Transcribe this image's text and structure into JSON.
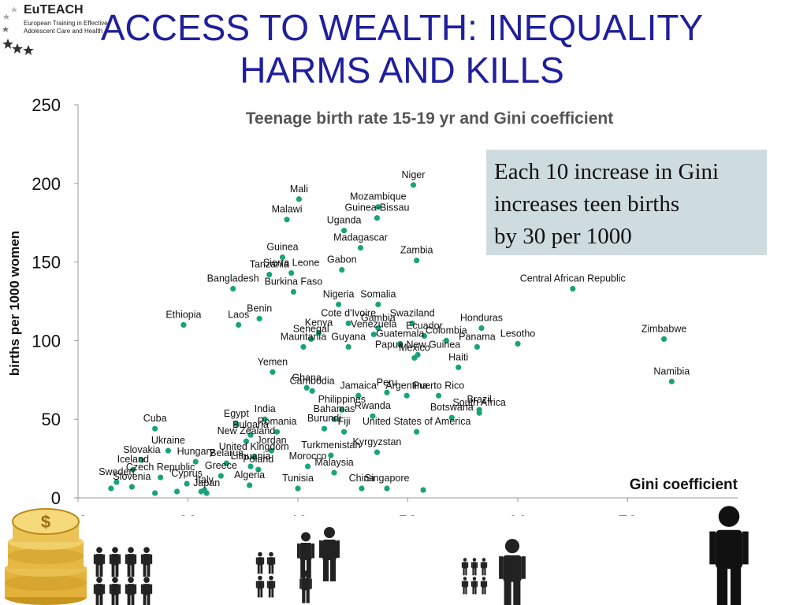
{
  "logo": {
    "name": "EuTEACH",
    "subtitle": "European Training in Effective Adolescent Care and Health"
  },
  "slide": {
    "title": "ACCESS TO WEALTH: INEQUALITY HARMS AND KILLS"
  },
  "callout": {
    "lines": [
      "Each 10 increase in Gini",
      "increases teen births",
      "by 30 per 1000"
    ]
  },
  "chart_data": {
    "type": "scatter",
    "title": "Teenage birth rate 15-19 yr and Gini coefficient",
    "xlabel": "Gini coefficient",
    "ylabel": "births per 1000 women",
    "xlim": [
      20,
      80
    ],
    "ylim": [
      0,
      250
    ],
    "xticks": [
      20,
      30,
      40,
      50,
      60,
      70
    ],
    "yticks": [
      0,
      50,
      100,
      150,
      200,
      250
    ],
    "grid": false,
    "point_color": "#1aa37a",
    "points": [
      {
        "label": "Niger",
        "x": 50.5,
        "y": 199
      },
      {
        "label": "Mali",
        "x": 40.1,
        "y": 190
      },
      {
        "label": "Mozambique",
        "x": 47.3,
        "y": 185
      },
      {
        "label": "Malawi",
        "x": 39,
        "y": 177
      },
      {
        "label": "Guinea-Bissau",
        "x": 47.2,
        "y": 178
      },
      {
        "label": "Uganda",
        "x": 44.2,
        "y": 170
      },
      {
        "label": "Guinea",
        "x": 38.6,
        "y": 153
      },
      {
        "label": "Madagascar",
        "x": 45.7,
        "y": 159
      },
      {
        "label": "Zambia",
        "x": 50.8,
        "y": 151
      },
      {
        "label": "Sierra Leone",
        "x": 39.4,
        "y": 143
      },
      {
        "label": "Gabon",
        "x": 44,
        "y": 145
      },
      {
        "label": "Tanzania",
        "x": 37.4,
        "y": 142
      },
      {
        "label": "Bangladesh",
        "x": 34.1,
        "y": 133
      },
      {
        "label": "Burkina Faso",
        "x": 39.6,
        "y": 131
      },
      {
        "label": "Nigeria",
        "x": 43.7,
        "y": 123
      },
      {
        "label": "Somalia",
        "x": 47.3,
        "y": 123
      },
      {
        "label": "Central African Republic",
        "x": 65,
        "y": 133
      },
      {
        "label": "Benin",
        "x": 36.5,
        "y": 114
      },
      {
        "label": "Ethiopia",
        "x": 29.6,
        "y": 110
      },
      {
        "label": "Laos",
        "x": 34.6,
        "y": 110
      },
      {
        "label": "Cote d'Ivoire",
        "x": 44.6,
        "y": 111
      },
      {
        "label": "Swaziland",
        "x": 50.4,
        "y": 111
      },
      {
        "label": "Honduras",
        "x": 56.7,
        "y": 108
      },
      {
        "label": "Zimbabwe",
        "x": 73.3,
        "y": 101
      },
      {
        "label": "Kenya",
        "x": 41.9,
        "y": 105
      },
      {
        "label": "Gambia",
        "x": 47.3,
        "y": 108
      },
      {
        "label": "Venezuela",
        "x": 46.9,
        "y": 104
      },
      {
        "label": "Ecuador",
        "x": 51.5,
        "y": 103
      },
      {
        "label": "Lesotho",
        "x": 60,
        "y": 98
      },
      {
        "label": "Senegal",
        "x": 41.2,
        "y": 101
      },
      {
        "label": "Colombia",
        "x": 53.5,
        "y": 100
      },
      {
        "label": "Guyana",
        "x": 44.6,
        "y": 96
      },
      {
        "label": "Guatemala",
        "x": 49.3,
        "y": 98
      },
      {
        "label": "Mauritania",
        "x": 40.5,
        "y": 96
      },
      {
        "label": "Mexico",
        "x": 50.6,
        "y": 89
      },
      {
        "label": "Panama",
        "x": 56.3,
        "y": 96
      },
      {
        "label": "Yemen",
        "x": 37.7,
        "y": 80
      },
      {
        "label": "Papua New Guinea",
        "x": 50.9,
        "y": 91
      },
      {
        "label": "Haiti",
        "x": 54.6,
        "y": 83
      },
      {
        "label": "Namibia",
        "x": 74,
        "y": 74
      },
      {
        "label": "Ghana",
        "x": 40.8,
        "y": 70
      },
      {
        "label": "Jamaica",
        "x": 45.5,
        "y": 65
      },
      {
        "label": "Argentina",
        "x": 49.9,
        "y": 65
      },
      {
        "label": "Peru",
        "x": 48.1,
        "y": 67
      },
      {
        "label": "Puerto Rico",
        "x": 52.8,
        "y": 65
      },
      {
        "label": "Brazil",
        "x": 56.5,
        "y": 56
      },
      {
        "label": "Botswana",
        "x": 54,
        "y": 51
      },
      {
        "label": "South Africa",
        "x": 56.5,
        "y": 54
      },
      {
        "label": "Cambodia",
        "x": 41.3,
        "y": 68
      },
      {
        "label": "Philippines",
        "x": 44,
        "y": 56
      },
      {
        "label": "Rwanda",
        "x": 46.8,
        "y": 52
      },
      {
        "label": "Egypt",
        "x": 34.4,
        "y": 47
      },
      {
        "label": "India",
        "x": 37,
        "y": 50
      },
      {
        "label": "Bahamas",
        "x": 43.3,
        "y": 50
      },
      {
        "label": "Cuba",
        "x": 27,
        "y": 44
      },
      {
        "label": "Bulgaria",
        "x": 35.7,
        "y": 40
      },
      {
        "label": "Romania",
        "x": 38.1,
        "y": 42
      },
      {
        "label": "United States of America",
        "x": 50.8,
        "y": 42
      },
      {
        "label": "Burundi",
        "x": 42.4,
        "y": 44
      },
      {
        "label": "Fiji",
        "x": 44.2,
        "y": 42
      },
      {
        "label": "New Zealand",
        "x": 35.3,
        "y": 36
      },
      {
        "label": "Ukraine",
        "x": 28.2,
        "y": 30
      },
      {
        "label": "Jordan",
        "x": 37.6,
        "y": 30
      },
      {
        "label": "Kyrgyzstan",
        "x": 47.2,
        "y": 29
      },
      {
        "label": "Slovakia",
        "x": 25.8,
        "y": 24
      },
      {
        "label": "United Kingdom",
        "x": 36,
        "y": 26
      },
      {
        "label": "Turkmenistan",
        "x": 43,
        "y": 27
      },
      {
        "label": "Iceland",
        "x": 25,
        "y": 18
      },
      {
        "label": "Hungary",
        "x": 30.7,
        "y": 23
      },
      {
        "label": "Belarus",
        "x": 33.5,
        "y": 22
      },
      {
        "label": "Lithuania",
        "x": 35.7,
        "y": 20
      },
      {
        "label": "Morocco",
        "x": 40.9,
        "y": 20
      },
      {
        "label": "Czech Republic",
        "x": 27.5,
        "y": 13
      },
      {
        "label": "Greece",
        "x": 33,
        "y": 14
      },
      {
        "label": "Poland",
        "x": 36.4,
        "y": 18
      },
      {
        "label": "Malaysia",
        "x": 43.3,
        "y": 16
      },
      {
        "label": "Sweden",
        "x": 23.5,
        "y": 10
      },
      {
        "label": "Cyprus",
        "x": 29.9,
        "y": 9
      },
      {
        "label": "Italy",
        "x": 31.5,
        "y": 5
      },
      {
        "label": "Algeria",
        "x": 35.6,
        "y": 8
      },
      {
        "label": "Tunisia",
        "x": 40,
        "y": 6
      },
      {
        "label": "China",
        "x": 45.8,
        "y": 6
      },
      {
        "label": "Singapore",
        "x": 48.1,
        "y": 6
      },
      {
        "label": "Slovenia",
        "x": 24.9,
        "y": 7
      },
      {
        "label": "Japan",
        "x": 31.7,
        "y": 3
      },
      {
        "label": "",
        "x": 23,
        "y": 6
      },
      {
        "label": "",
        "x": 27,
        "y": 3
      },
      {
        "label": "",
        "x": 29,
        "y": 4
      },
      {
        "label": "",
        "x": 31.2,
        "y": 4
      },
      {
        "label": "",
        "x": 51.4,
        "y": 5
      }
    ]
  },
  "illustrations": {
    "coin_icon": "coin-stack-icon",
    "person_icon": "person-icon"
  }
}
